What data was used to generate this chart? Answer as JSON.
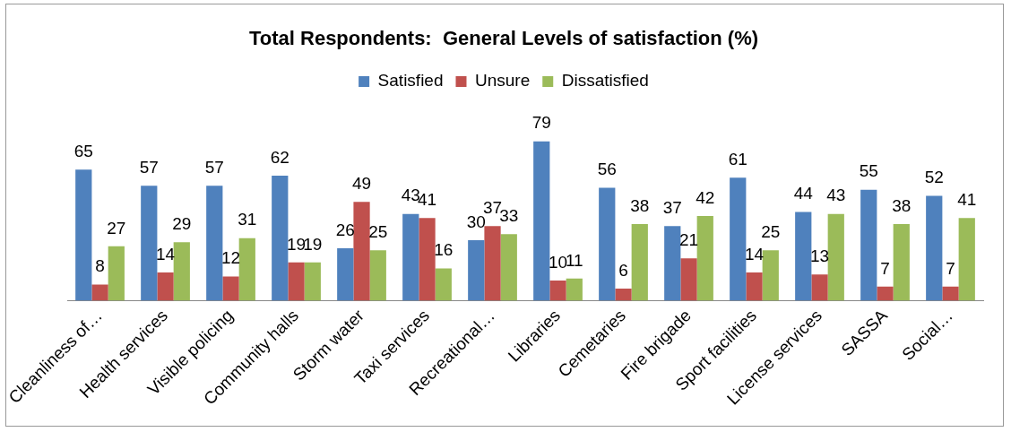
{
  "chart_data": {
    "type": "bar",
    "title": "Total Respondents:  General Levels of satisfaction (%)",
    "categories": [
      "Cleanliness of…",
      "Health services",
      "Visible policing",
      "Community halls",
      "Storm water",
      "Taxi services",
      "Recreational…",
      "Libraries",
      "Cemetaries",
      "Fire brigade",
      "Sport facilities",
      "License services",
      "SASSA",
      "Social…"
    ],
    "series": [
      {
        "name": "Satisfied",
        "color": "#4f81bd",
        "values": [
          65,
          57,
          57,
          62,
          26,
          43,
          30,
          79,
          56,
          37,
          61,
          44,
          55,
          52
        ]
      },
      {
        "name": "Unsure",
        "color": "#c0504d",
        "values": [
          8,
          14,
          12,
          19,
          49,
          41,
          37,
          10,
          6,
          21,
          14,
          13,
          7,
          7
        ]
      },
      {
        "name": "Dissatisfied",
        "color": "#9bbb59",
        "values": [
          27,
          29,
          31,
          19,
          25,
          16,
          33,
          11,
          38,
          42,
          25,
          43,
          38,
          41
        ]
      }
    ],
    "data_labels": true,
    "legend": "top",
    "grid": false,
    "tick_labels": "x"
  }
}
